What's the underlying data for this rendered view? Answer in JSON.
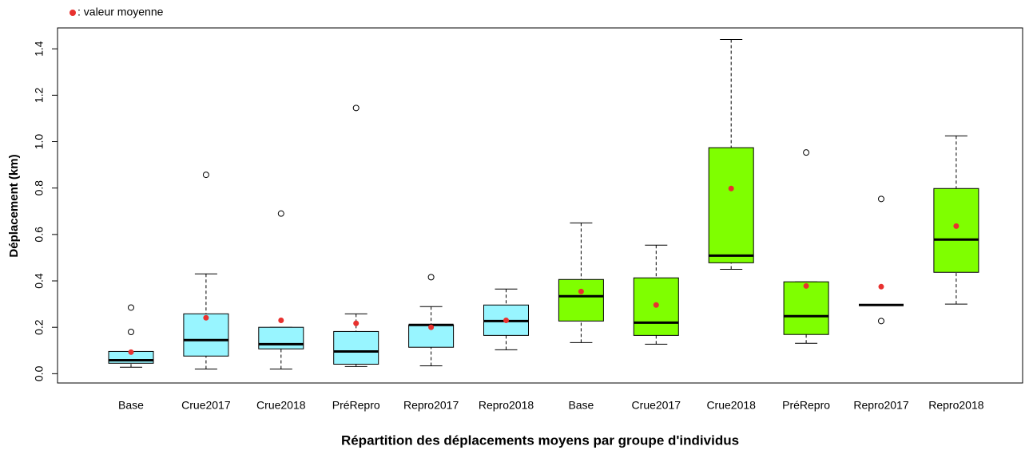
{
  "chart_data": {
    "type": "box",
    "title": "Répartition des déplacements moyens par groupe d'individus",
    "ylabel": "Déplacement (km)",
    "legend": {
      "label": ": valeur moyenne",
      "corner": "top-left"
    },
    "mean_color": "#e8312f",
    "ylim": [
      -0.04,
      1.49
    ],
    "yticks": [
      {
        "value": 0,
        "label": "0.0"
      },
      0.2,
      0.4,
      0.6,
      0.8,
      {
        "value": 1,
        "label": "1.0"
      },
      1.2,
      1.4
    ],
    "boxes": [
      {
        "category": "Base",
        "color": "#98f5ff",
        "whisker_low": 0.028,
        "q1": 0.045,
        "median": 0.058,
        "q3": 0.096,
        "whisker_high": 0.096,
        "outliers": [
          0.285,
          0.18
        ],
        "mean": 0.093
      },
      {
        "category": "Crue2017",
        "color": "#98f5ff",
        "whisker_low": 0.02,
        "q1": 0.076,
        "median": 0.145,
        "q3": 0.258,
        "whisker_high": 0.43,
        "outliers": [
          0.857
        ],
        "mean": 0.241
      },
      {
        "category": "Crue2018",
        "color": "#98f5ff",
        "whisker_low": 0.02,
        "q1": 0.107,
        "median": 0.127,
        "q3": 0.2,
        "whisker_high": 0.2,
        "outliers": [
          0.69
        ],
        "mean": 0.23
      },
      {
        "category": "PréRepro",
        "color": "#98f5ff",
        "whisker_low": 0.031,
        "q1": 0.041,
        "median": 0.096,
        "q3": 0.182,
        "whisker_high": 0.258,
        "outliers": [
          1.145
        ],
        "mean": 0.217
      },
      {
        "category": "Repro2017",
        "color": "#98f5ff",
        "whisker_low": 0.034,
        "q1": 0.114,
        "median": 0.21,
        "q3": 0.21,
        "whisker_high": 0.289,
        "outliers": [
          0.416
        ],
        "mean": 0.2
      },
      {
        "category": "Repro2018",
        "color": "#98f5ff",
        "whisker_low": 0.103,
        "q1": 0.165,
        "median": 0.227,
        "q3": 0.296,
        "whisker_high": 0.365,
        "outliers": [],
        "mean": 0.23
      },
      {
        "category": "Base",
        "color": "#7fff00",
        "whisker_low": 0.134,
        "q1": 0.227,
        "median": 0.334,
        "q3": 0.406,
        "whisker_high": 0.65,
        "outliers": [],
        "mean": 0.354
      },
      {
        "category": "Crue2017",
        "color": "#7fff00",
        "whisker_low": 0.127,
        "q1": 0.165,
        "median": 0.22,
        "q3": 0.413,
        "whisker_high": 0.554,
        "outliers": [],
        "mean": 0.296
      },
      {
        "category": "Crue2018",
        "color": "#7fff00",
        "whisker_low": 0.45,
        "q1": 0.478,
        "median": 0.509,
        "q3": 0.974,
        "whisker_high": 1.44,
        "outliers": [],
        "mean": 0.798
      },
      {
        "category": "PréRepro",
        "color": "#7fff00",
        "whisker_low": 0.131,
        "q1": 0.169,
        "median": 0.248,
        "q3": 0.396,
        "whisker_high": 0.396,
        "outliers": [
          0.953
        ],
        "mean": 0.378
      },
      {
        "category": "Repro2017",
        "color": "#7fff00",
        "whisker_low": 0.296,
        "q1": 0.296,
        "median": 0.296,
        "q3": 0.296,
        "whisker_high": 0.296,
        "outliers": [
          0.753,
          0.227
        ],
        "mean": 0.375
      },
      {
        "category": "Repro2018",
        "color": "#7fff00",
        "whisker_low": 0.3,
        "q1": 0.437,
        "median": 0.578,
        "q3": 0.798,
        "whisker_high": 1.025,
        "outliers": [],
        "mean": 0.636
      }
    ]
  }
}
